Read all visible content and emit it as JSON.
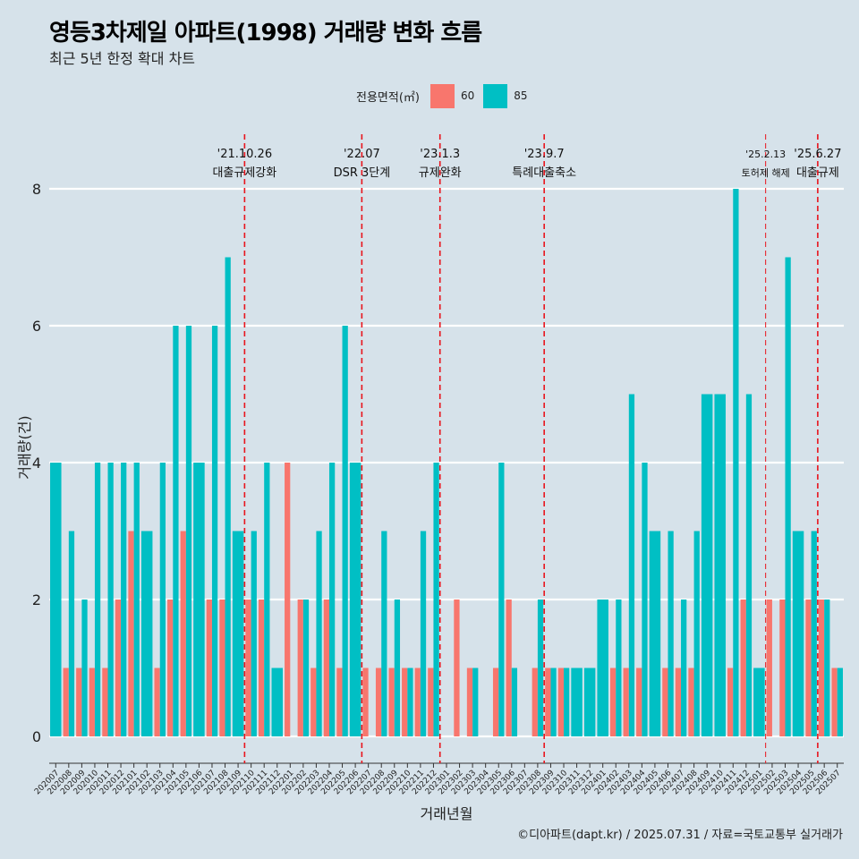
{
  "title": "영등3차제일 아파트(1998) 거래량 변화 흐름",
  "subtitle": "최근 5년 한정 확대 차트",
  "legend": {
    "title": "전용면적(㎡)",
    "items": [
      {
        "label": "60",
        "color": "#f8766d"
      },
      {
        "label": "85",
        "color": "#00bfc4"
      }
    ]
  },
  "caption": "©디아파트(dapt.kr) / 2025.07.31 / 자료=국토교통부 실거래가",
  "chart_data": {
    "type": "bar",
    "title": "영등3차제일 아파트(1998) 거래량 변화 흐름",
    "xlabel": "거래년월",
    "ylabel": "거래량(건)",
    "ylim": [
      0,
      8
    ],
    "yticks": [
      0,
      2,
      4,
      6,
      8
    ],
    "categories": [
      "202007",
      "202008",
      "202009",
      "202010",
      "202011",
      "202012",
      "202101",
      "202102",
      "202103",
      "202104",
      "202105",
      "202106",
      "202107",
      "202108",
      "202109",
      "202110",
      "202111",
      "202112",
      "202201",
      "202202",
      "202203",
      "202204",
      "202205",
      "202206",
      "202207",
      "202208",
      "202209",
      "202210",
      "202211",
      "202212",
      "202301",
      "202302",
      "202303",
      "202304",
      "202305",
      "202306",
      "202307",
      "202308",
      "202309",
      "202310",
      "202311",
      "202312",
      "202401",
      "202402",
      "202403",
      "202404",
      "202405",
      "202406",
      "202407",
      "202408",
      "202409",
      "202410",
      "202411",
      "202412",
      "202501",
      "202502",
      "202503",
      "202504",
      "202505",
      "202506",
      "202507"
    ],
    "series": [
      {
        "name": "60",
        "color": "#f8766d",
        "values": [
          0,
          1,
          1,
          1,
          1,
          2,
          3,
          0,
          1,
          2,
          3,
          0,
          2,
          2,
          0,
          2,
          2,
          0,
          4,
          2,
          1,
          2,
          1,
          0,
          1,
          1,
          1,
          1,
          1,
          1,
          0,
          2,
          1,
          0,
          1,
          2,
          0,
          1,
          1,
          1,
          0,
          0,
          0,
          1,
          1,
          1,
          0,
          1,
          1,
          1,
          0,
          0,
          1,
          2,
          0,
          2,
          2,
          0,
          2,
          2,
          1
        ]
      },
      {
        "name": "85",
        "color": "#00bfc4",
        "values": [
          4,
          3,
          2,
          4,
          4,
          4,
          4,
          3,
          4,
          6,
          6,
          4,
          6,
          7,
          3,
          3,
          4,
          1,
          0,
          2,
          3,
          4,
          6,
          4,
          0,
          3,
          2,
          1,
          3,
          4,
          0,
          0,
          1,
          0,
          4,
          1,
          0,
          2,
          1,
          1,
          1,
          1,
          2,
          2,
          5,
          4,
          3,
          3,
          2,
          3,
          5,
          5,
          8,
          5,
          1,
          0,
          7,
          3,
          3,
          2,
          1
        ]
      }
    ],
    "annotations": [
      {
        "index": 15,
        "date": "'21.10.26",
        "text": "대출규제강화"
      },
      {
        "index": 24,
        "date": "'22.07",
        "text": "DSR 3단계"
      },
      {
        "index": 30,
        "date": "'23.1.3",
        "text": "규제완화"
      },
      {
        "index": 38,
        "date": "'23.9.7",
        "text": "특례대출축소"
      },
      {
        "index": 55,
        "date": "'25.2.13",
        "text": "토허제 해제",
        "small": true
      },
      {
        "index": 59,
        "date": "'25.6.27",
        "text": "대출규제"
      }
    ]
  }
}
